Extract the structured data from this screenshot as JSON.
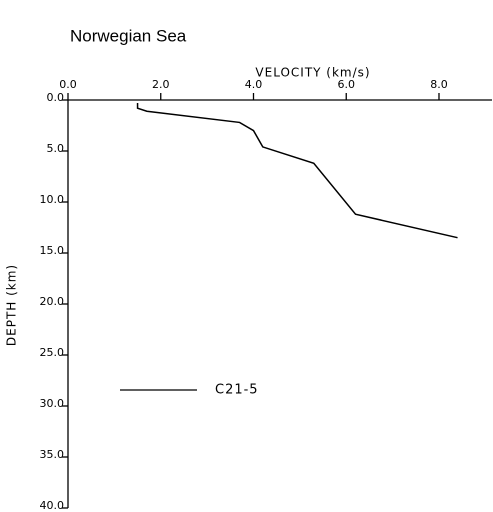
{
  "chart_data": {
    "type": "line",
    "title": "Norwegian Sea",
    "x_label": "VELOCITY (km/s)",
    "y_label": "DEPTH (km)",
    "x_axis_position": "top",
    "y_inverted": true,
    "xlim": [
      0,
      9.1
    ],
    "ylim": [
      0,
      40
    ],
    "xticks": [
      {
        "value": 0,
        "label": "0.0"
      },
      {
        "value": 2,
        "label": "2.0"
      },
      {
        "value": 4,
        "label": "4.0"
      },
      {
        "value": 6,
        "label": "6.0"
      },
      {
        "value": 8,
        "label": "8.0"
      }
    ],
    "yticks": [
      {
        "value": 0,
        "label": "0.0"
      },
      {
        "value": 5,
        "label": "5.0"
      },
      {
        "value": 10,
        "label": "10.0"
      },
      {
        "value": 15,
        "label": "15.0"
      },
      {
        "value": 20,
        "label": "20.0"
      },
      {
        "value": 25,
        "label": "25.0"
      },
      {
        "value": 30,
        "label": "30.0"
      },
      {
        "value": 35,
        "label": "35.0"
      },
      {
        "value": 40,
        "label": "40.0"
      }
    ],
    "x": [
      1.5,
      1.5,
      1.7,
      3.7,
      4.0,
      4.2,
      5.3,
      6.2,
      8.4
    ],
    "series": [
      {
        "name": "C21-5",
        "color": "#000000",
        "values": [
          0.3,
          0.8,
          1.1,
          2.2,
          3.0,
          4.6,
          6.2,
          11.2,
          13.5
        ]
      }
    ]
  }
}
